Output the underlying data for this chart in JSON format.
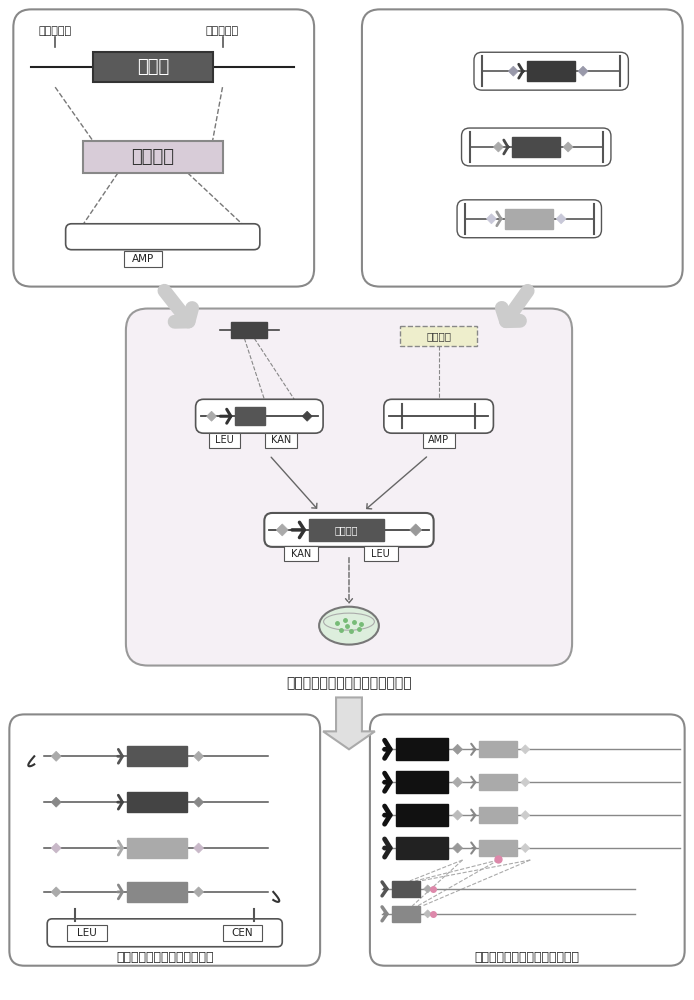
{
  "bg_color": "#ffffff",
  "title_top_left": "标准化位点",
  "label_source_gene": "源基因",
  "label_gene_element": "基因元件",
  "label_amp": "AMP",
  "label_leu": "LEU",
  "label_kan": "KAN",
  "label_cen": "CEN",
  "label_amp2": "AMP",
  "label_gene_element2": "基因元件",
  "label_ecoli": "功能模块的质粒存放于大肠杆菌中",
  "label_plasmid": "不同的功能模块组合构成质粒",
  "label_genome": "不同的功能模块组合整入基因组"
}
